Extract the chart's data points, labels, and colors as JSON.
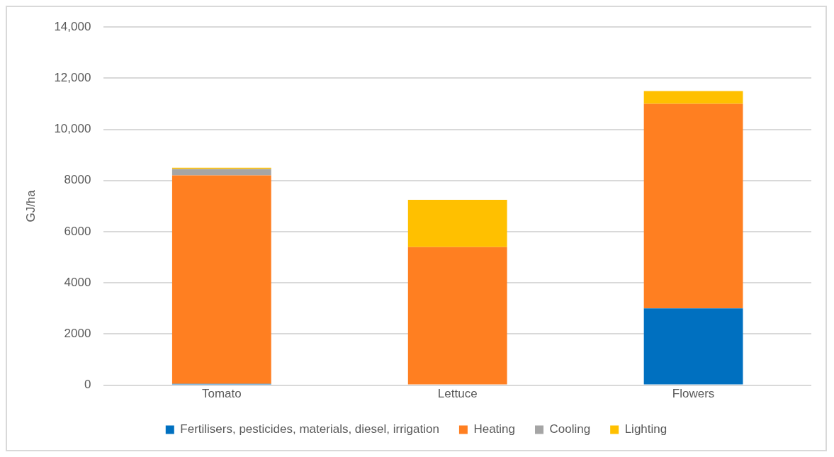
{
  "chart_data": {
    "type": "bar",
    "stacked": true,
    "ylabel": "GJ/ha",
    "categories": [
      "Tomato",
      "Lettuce",
      "Flowers"
    ],
    "series": [
      {
        "name": "Fertilisers, pesticides, materials, diesel, irrigation",
        "color": "#0070c0",
        "values": [
          50,
          0,
          3000
        ]
      },
      {
        "name": "Heating",
        "color": "#ff7f21",
        "values": [
          8150,
          5400,
          8000
        ]
      },
      {
        "name": "Cooling",
        "color": "#a5a5a5",
        "values": [
          250,
          0,
          0
        ]
      },
      {
        "name": "Lighting",
        "color": "#ffc000",
        "values": [
          50,
          1850,
          500
        ]
      }
    ],
    "ylim": [
      0,
      14000
    ],
    "yticks": [
      0,
      {
        "value": 2000,
        "label": "2000"
      },
      {
        "value": 4000,
        "label": "4000"
      },
      {
        "value": 6000,
        "label": "6000"
      },
      {
        "value": 8000,
        "label": "8000"
      },
      {
        "value": 10000,
        "label": "10,000"
      },
      {
        "value": 12000,
        "label": "12,000"
      },
      {
        "value": 14000,
        "label": "14,000"
      }
    ],
    "grid": "y",
    "legend": "bottom"
  }
}
